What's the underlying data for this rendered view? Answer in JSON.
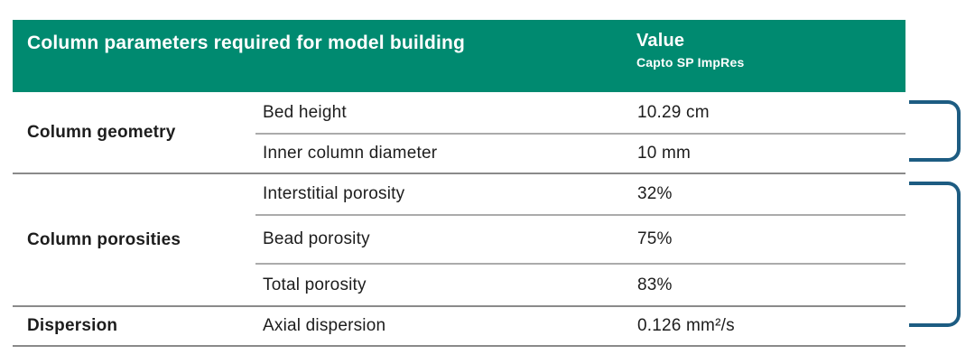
{
  "header": {
    "title": "Column parameters required for model building",
    "value_label": "Value",
    "value_sublabel": "Capto SP ImpRes"
  },
  "table": {
    "groups": [
      {
        "name": "Column geometry",
        "rows": [
          {
            "parameter": "Bed height",
            "value": "10.29 cm"
          },
          {
            "parameter": "Inner column diameter",
            "value": "10 mm"
          }
        ]
      },
      {
        "name": "Column porosities",
        "rows": [
          {
            "parameter": "Interstitial porosity",
            "value": "32%"
          },
          {
            "parameter": "Bead porosity",
            "value": "75%"
          },
          {
            "parameter": "Total porosity",
            "value": "83%"
          }
        ]
      },
      {
        "name": "Dispersion",
        "rows": [
          {
            "parameter": "Axial dispersion",
            "value": "0.126 mm²/s"
          }
        ]
      }
    ]
  },
  "colors": {
    "header_green": "#008a70",
    "bracket_blue": "#1d5c82",
    "divider_full": "#8a8a8a",
    "divider_partial": "#ababab"
  }
}
